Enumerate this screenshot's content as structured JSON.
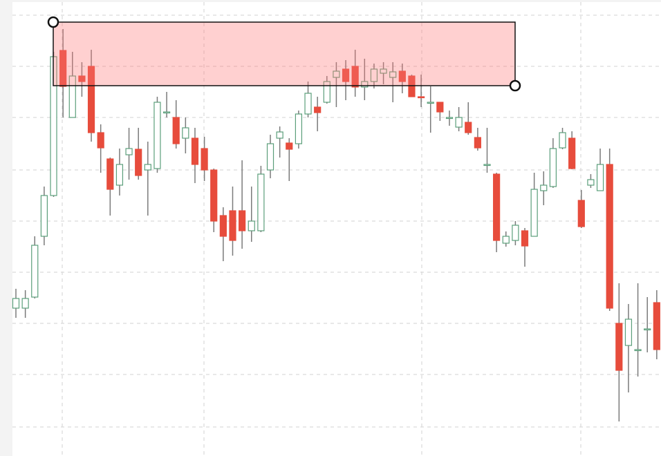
{
  "chart_data": {
    "type": "candlestick",
    "up_color": "#5a9e7a",
    "down_color": "#e74c3c",
    "wick_color": "#7a7a7a",
    "grid": true,
    "ylim": [
      0,
      660
    ],
    "yticks": [
      42,
      118,
      192,
      266,
      340,
      414,
      490,
      564,
      638
    ],
    "open": [
      214,
      214,
      230,
      318,
      377,
      587,
      490,
      550,
      564,
      468,
      430,
      392,
      436,
      444,
      414,
      416,
      498,
      490,
      460,
      460,
      445,
      414,
      348,
      355,
      355,
      326,
      326,
      414,
      460,
      453,
      452,
      495,
      505,
      512,
      548,
      560,
      564,
      534,
      542,
      554,
      548,
      557,
      550,
      520,
      512,
      512,
      490,
      476,
      483,
      461,
      422,
      408,
      308,
      312,
      326,
      318,
      384,
      390,
      446,
      460,
      370,
      392,
      384,
      422,
      192,
      160,
      154,
      184,
      222
    ],
    "high": [
      242,
      240,
      318,
      390,
      585,
      618,
      585,
      570,
      588,
      480,
      432,
      445,
      475,
      475,
      455,
      520,
      527,
      515,
      490,
      475,
      462,
      416,
      360,
      390,
      428,
      390,
      420,
      465,
      477,
      460,
      500,
      542,
      520,
      550,
      570,
      573,
      588,
      575,
      568,
      570,
      570,
      568,
      552,
      552,
      535,
      512,
      500,
      505,
      512,
      475,
      475,
      410,
      325,
      340,
      330,
      410,
      412,
      460,
      475,
      470,
      385,
      408,
      445,
      445,
      250,
      220,
      250,
      230,
      240
    ],
    "low": [
      200,
      200,
      228,
      305,
      375,
      490,
      490,
      520,
      455,
      410,
      348,
      377,
      400,
      400,
      348,
      410,
      490,
      445,
      438,
      395,
      398,
      324,
      282,
      290,
      300,
      310,
      324,
      402,
      432,
      398,
      445,
      490,
      470,
      510,
      505,
      515,
      520,
      515,
      532,
      538,
      512,
      525,
      520,
      505,
      468,
      485,
      478,
      470,
      465,
      442,
      410,
      295,
      303,
      305,
      274,
      318,
      363,
      388,
      444,
      415,
      330,
      388,
      384,
      210,
      50,
      92,
      115,
      150,
      140
    ],
    "close": [
      228,
      228,
      305,
      377,
      578,
      535,
      550,
      542,
      468,
      446,
      386,
      422,
      445,
      406,
      422,
      512,
      498,
      452,
      475,
      422,
      414,
      340,
      318,
      312,
      326,
      340,
      408,
      452,
      469,
      444,
      495,
      525,
      497,
      542,
      557,
      542,
      534,
      542,
      560,
      560,
      556,
      542,
      520,
      519,
      512,
      498,
      490,
      490,
      468,
      446,
      422,
      312,
      318,
      334,
      304,
      386,
      392,
      445,
      468,
      416,
      332,
      400,
      422,
      214,
      124,
      198,
      154,
      184,
      154
    ]
  }
}
